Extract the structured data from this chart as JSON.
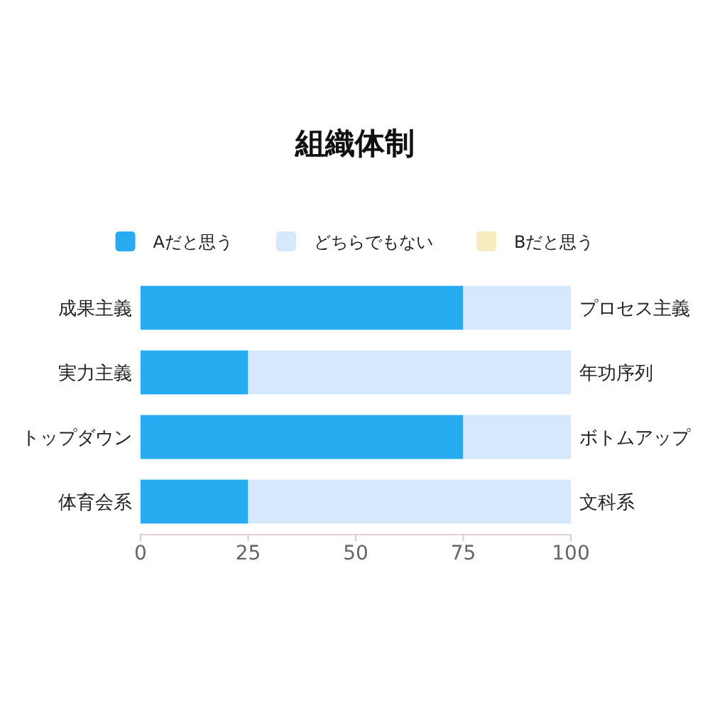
{
  "chart_data": {
    "type": "bar",
    "orientation": "horizontal",
    "stacked": true,
    "title": "組織体制",
    "categories": [
      "成果主義",
      "実力主義",
      "トップダウン",
      "体育会系"
    ],
    "y2_categories": [
      "プロセス主義",
      "年功序列",
      "ボトムアップ",
      "文科系"
    ],
    "series": [
      {
        "name": "Aだと思う",
        "color": "#27abf0",
        "values": [
          75,
          25,
          75,
          25
        ]
      },
      {
        "name": "どちらでもない",
        "color": "#d6e8fb",
        "values": [
          25,
          75,
          25,
          75
        ]
      },
      {
        "name": "Bだと思う",
        "color": "#f8edc0",
        "values": [
          0,
          0,
          0,
          0
        ]
      }
    ],
    "xlim": [
      0,
      100
    ],
    "xticks": [
      0,
      25,
      50,
      75,
      100
    ],
    "legend": "top",
    "grid": false
  }
}
